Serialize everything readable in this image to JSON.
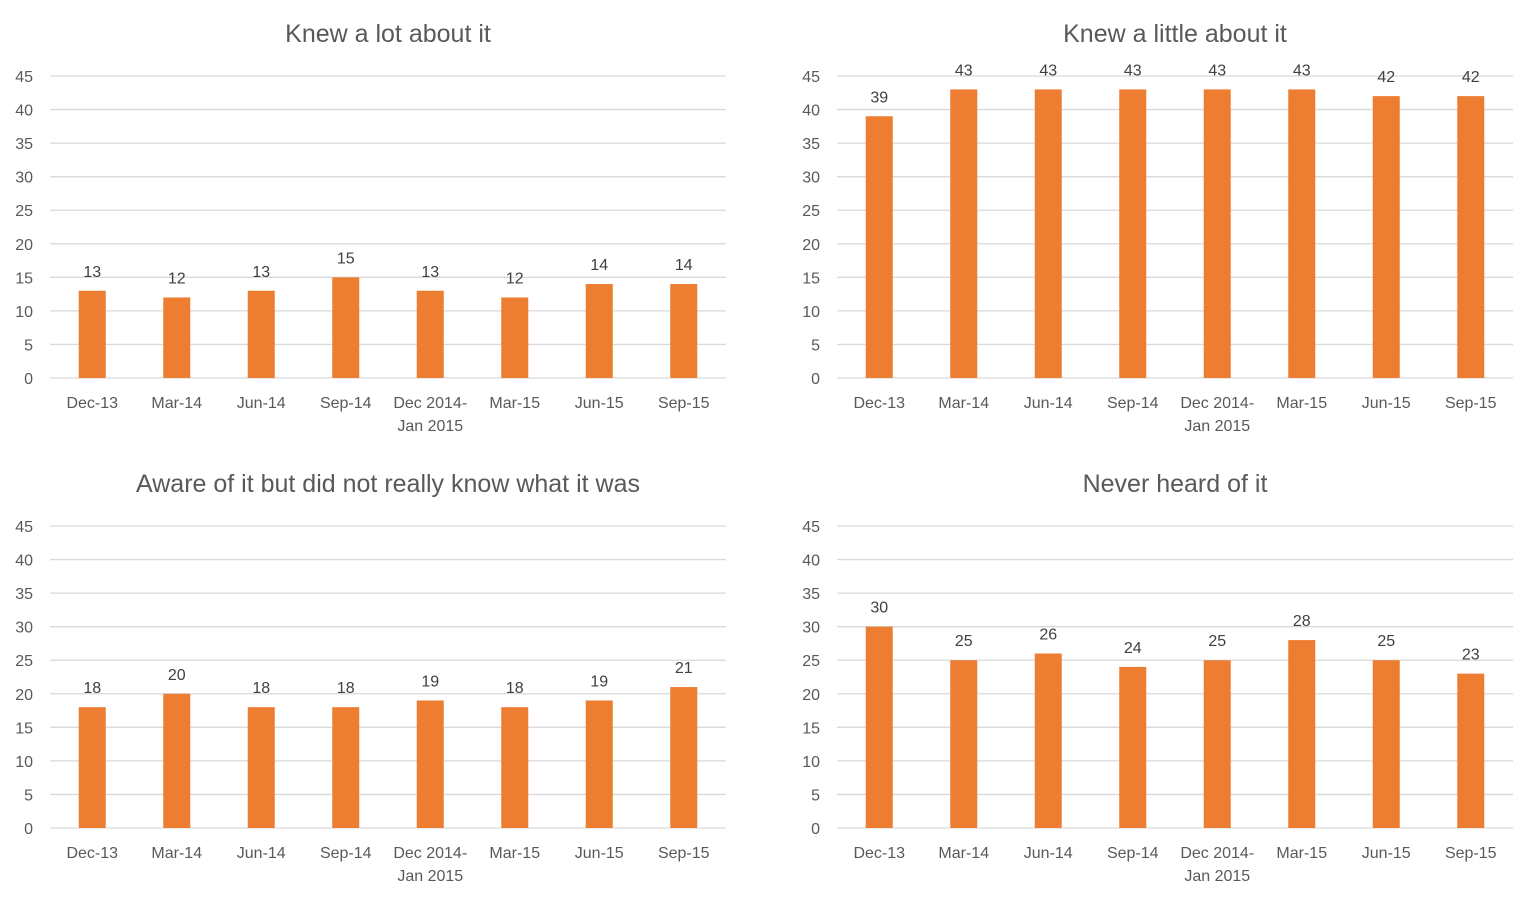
{
  "bar_color": "#ed7d31",
  "chart_data": [
    {
      "type": "bar",
      "title": "Knew a lot about it",
      "categories": [
        "Dec-13",
        "Mar-14",
        "Jun-14",
        "Sep-14",
        "Dec 2014-\nJan 2015",
        "Mar-15",
        "Jun-15",
        "Sep-15"
      ],
      "values": [
        13,
        12,
        13,
        15,
        13,
        12,
        14,
        14
      ],
      "ylim": [
        0,
        45
      ],
      "yticks": [
        0,
        5,
        10,
        15,
        20,
        25,
        30,
        35,
        40,
        45
      ],
      "xlabel": "",
      "ylabel": "",
      "grid": true
    },
    {
      "type": "bar",
      "title": "Knew a little about it",
      "categories": [
        "Dec-13",
        "Mar-14",
        "Jun-14",
        "Sep-14",
        "Dec 2014-\nJan 2015",
        "Mar-15",
        "Jun-15",
        "Sep-15"
      ],
      "values": [
        39,
        43,
        43,
        43,
        43,
        43,
        42,
        42
      ],
      "ylim": [
        0,
        45
      ],
      "yticks": [
        0,
        5,
        10,
        15,
        20,
        25,
        30,
        35,
        40,
        45
      ],
      "xlabel": "",
      "ylabel": "",
      "grid": true
    },
    {
      "type": "bar",
      "title": "Aware of it but did not really know what it was",
      "categories": [
        "Dec-13",
        "Mar-14",
        "Jun-14",
        "Sep-14",
        "Dec 2014-\nJan 2015",
        "Mar-15",
        "Jun-15",
        "Sep-15"
      ],
      "values": [
        18,
        20,
        18,
        18,
        19,
        18,
        19,
        21
      ],
      "ylim": [
        0,
        45
      ],
      "yticks": [
        0,
        5,
        10,
        15,
        20,
        25,
        30,
        35,
        40,
        45
      ],
      "xlabel": "",
      "ylabel": "",
      "grid": true
    },
    {
      "type": "bar",
      "title": "Never heard of it",
      "categories": [
        "Dec-13",
        "Mar-14",
        "Jun-14",
        "Sep-14",
        "Dec 2014-\nJan 2015",
        "Mar-15",
        "Jun-15",
        "Sep-15"
      ],
      "values": [
        30,
        25,
        26,
        24,
        25,
        28,
        25,
        23
      ],
      "ylim": [
        0,
        45
      ],
      "yticks": [
        0,
        5,
        10,
        15,
        20,
        25,
        30,
        35,
        40,
        45
      ],
      "xlabel": "",
      "ylabel": "",
      "grid": true
    }
  ]
}
